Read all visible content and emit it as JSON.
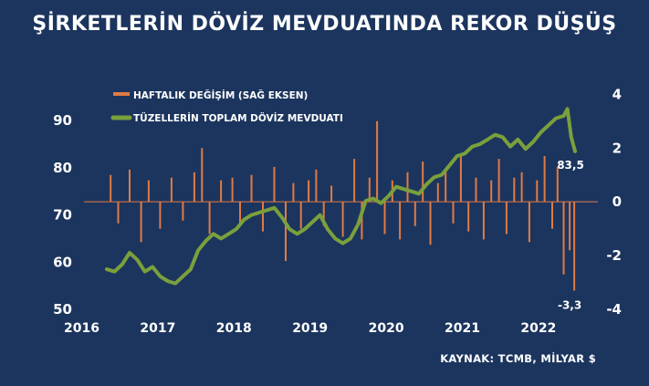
{
  "header": {
    "title": "ŞİRKETLERİN DÖVİZ MEVDUATINDA REKOR DÜŞÜŞ"
  },
  "footer": {
    "source": "KAYNAK: TCMB, MİLYAR $"
  },
  "colors": {
    "background": "#1c355e",
    "line": "#7aa03c",
    "bar": "#e07b44",
    "text": "#ffffff"
  },
  "chart_data": {
    "type": "bar+line",
    "title": "ŞİRKETLERİN DÖVİZ MEVDUATINDA REKOR DÜŞÜŞ",
    "x_range": [
      2016,
      2022.75
    ],
    "x_ticks": [
      "2016",
      "2017",
      "2018",
      "2019",
      "2020",
      "2021",
      "2022"
    ],
    "y_left": {
      "range": [
        50,
        97
      ],
      "ticks": [
        "90",
        "80",
        "70",
        "60",
        "50"
      ]
    },
    "y_right": {
      "range": [
        -4,
        4.25
      ],
      "ticks": [
        "4",
        "2",
        "0",
        "-2",
        "-4"
      ]
    },
    "legend": [
      "HAFTALIK DEĞİŞİM (SAĞ EKSEN)",
      "TÜZELLERİN TOPLAM DÖVİZ MEVDUATI"
    ],
    "legend_position": "top-left",
    "series": [
      {
        "name": "TÜZELLERİN TOPLAM DÖVİZ MEVDUATI",
        "type": "line",
        "axis": "left",
        "x": [
          2016.3,
          2016.4,
          2016.5,
          2016.6,
          2016.7,
          2016.8,
          2016.9,
          2017.0,
          2017.1,
          2017.2,
          2017.3,
          2017.4,
          2017.5,
          2017.6,
          2017.7,
          2017.8,
          2017.9,
          2018.0,
          2018.1,
          2018.2,
          2018.3,
          2018.4,
          2018.5,
          2018.6,
          2018.7,
          2018.8,
          2018.9,
          2019.0,
          2019.1,
          2019.2,
          2019.3,
          2019.4,
          2019.5,
          2019.55,
          2019.6,
          2019.7,
          2019.8,
          2019.9,
          2020.0,
          2020.1,
          2020.2,
          2020.3,
          2020.4,
          2020.5,
          2020.6,
          2020.7,
          2020.8,
          2020.9,
          2021.0,
          2021.1,
          2021.2,
          2021.3,
          2021.4,
          2021.5,
          2021.6,
          2021.7,
          2021.8,
          2021.9,
          2022.0,
          2022.1,
          2022.2,
          2022.3,
          2022.35,
          2022.4,
          2022.45
        ],
        "values": [
          58.5,
          58.0,
          59.5,
          62.0,
          60.5,
          58.0,
          59.0,
          57.0,
          56.0,
          55.5,
          57.0,
          58.5,
          62.5,
          64.5,
          66.0,
          65.0,
          66.0,
          67.0,
          69.0,
          70.0,
          70.5,
          71.0,
          71.5,
          69.5,
          67.0,
          66.0,
          67.0,
          68.5,
          70.0,
          67.0,
          65.0,
          64.0,
          65.0,
          66.5,
          68.0,
          73.0,
          73.5,
          72.5,
          74.0,
          76.0,
          75.5,
          75.0,
          74.5,
          76.5,
          78.0,
          78.5,
          80.5,
          82.5,
          83.0,
          84.5,
          85.0,
          86.0,
          87.0,
          86.5,
          84.5,
          86.0,
          84.0,
          85.5,
          87.5,
          89.0,
          90.5,
          91.0,
          92.5,
          86.5,
          83.5
        ]
      },
      {
        "name": "HAFTALIK DEĞİŞİM (SAĞ EKSEN)",
        "type": "bar",
        "axis": "right",
        "x": [
          2016.35,
          2016.45,
          2016.6,
          2016.75,
          2016.85,
          2017.0,
          2017.15,
          2017.3,
          2017.45,
          2017.55,
          2017.65,
          2017.8,
          2017.95,
          2018.05,
          2018.2,
          2018.35,
          2018.5,
          2018.65,
          2018.75,
          2018.85,
          2018.95,
          2019.05,
          2019.15,
          2019.25,
          2019.4,
          2019.55,
          2019.65,
          2019.75,
          2019.85,
          2019.95,
          2020.05,
          2020.15,
          2020.25,
          2020.35,
          2020.45,
          2020.55,
          2020.65,
          2020.75,
          2020.85,
          2020.95,
          2021.05,
          2021.15,
          2021.25,
          2021.35,
          2021.45,
          2021.55,
          2021.65,
          2021.75,
          2021.85,
          2021.95,
          2022.05,
          2022.15,
          2022.22,
          2022.3,
          2022.38,
          2022.44
        ],
        "values": [
          1.0,
          -0.8,
          1.2,
          -1.5,
          0.8,
          -1.0,
          0.9,
          -0.7,
          1.1,
          2.0,
          -1.2,
          0.8,
          0.9,
          -0.8,
          1.0,
          -1.1,
          1.3,
          -2.2,
          0.7,
          -1.0,
          0.8,
          1.2,
          -0.9,
          0.6,
          -1.3,
          1.6,
          -1.4,
          0.9,
          3.0,
          -1.2,
          0.8,
          -1.4,
          1.1,
          -0.9,
          1.5,
          -1.6,
          0.7,
          1.2,
          -0.8,
          1.8,
          -1.1,
          0.9,
          -1.4,
          0.8,
          1.6,
          -1.2,
          0.9,
          1.1,
          -1.5,
          0.8,
          1.7,
          -1.0,
          1.3,
          -2.7,
          -1.8,
          -3.3
        ]
      }
    ],
    "annotations": [
      {
        "label": "83,5",
        "x": 2022.45,
        "y": 83.5,
        "axis": "left"
      },
      {
        "label": "-3,3",
        "x": 2022.44,
        "y": -3.3,
        "axis": "right"
      }
    ]
  }
}
